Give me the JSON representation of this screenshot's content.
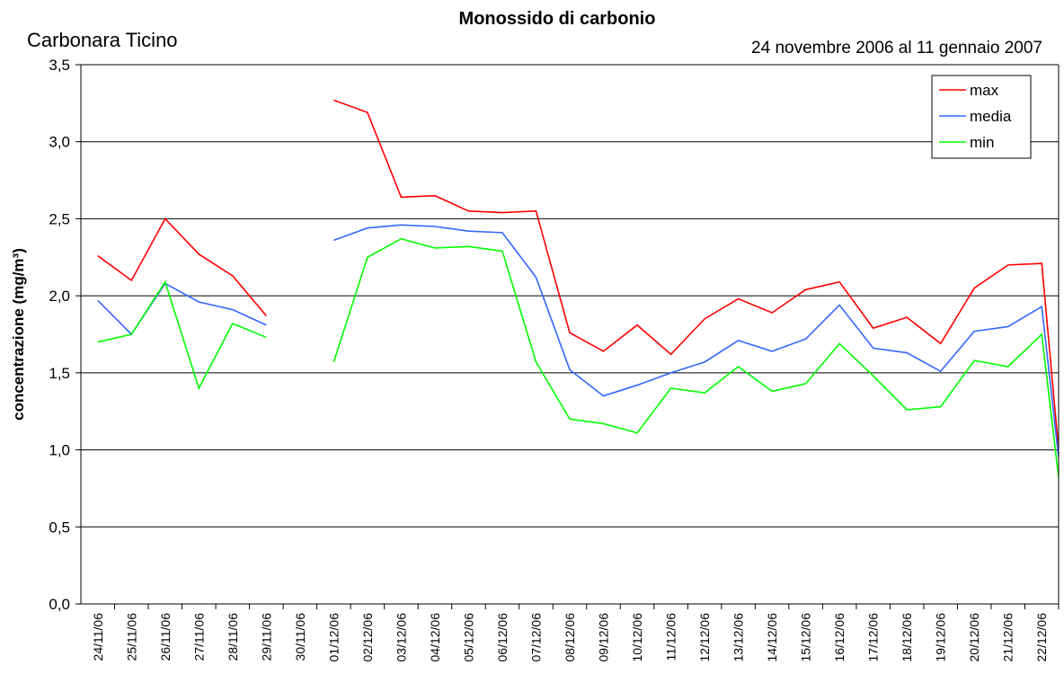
{
  "chart_data": {
    "type": "line",
    "title": "Monossido di carbonio",
    "subtitle": "24 novembre 2006 al 11 gennaio 2007",
    "location": "Carbonara Ticino",
    "y_label": "concentrazione (mg/m³)",
    "categories": [
      "24/11/06",
      "25/11/06",
      "26/11/06",
      "27/11/06",
      "28/11/06",
      "29/11/06",
      "30/11/06",
      "01/12/06",
      "02/12/06",
      "03/12/06",
      "04/12/06",
      "05/12/06",
      "06/12/06",
      "07/12/06",
      "08/12/06",
      "09/12/06",
      "10/12/06",
      "11/12/06",
      "12/12/06",
      "13/12/06",
      "14/12/06",
      "15/12/06",
      "16/12/06",
      "17/12/06",
      "18/12/06",
      "19/12/06",
      "20/12/06",
      "21/12/06",
      "22/12/06",
      null
    ],
    "series": [
      {
        "name": "max",
        "color": "#ff0000",
        "values": [
          2.26,
          2.1,
          2.5,
          2.27,
          2.13,
          1.87,
          null,
          3.27,
          3.19,
          2.64,
          2.65,
          2.55,
          2.54,
          2.55,
          1.76,
          1.64,
          1.81,
          1.62,
          1.85,
          1.98,
          1.89,
          2.04,
          2.09,
          1.79,
          1.86,
          1.69,
          2.05,
          2.2,
          2.21,
          1.0
        ]
      },
      {
        "name": "media",
        "color": "#3366ff",
        "values": [
          1.97,
          1.75,
          2.08,
          1.96,
          1.91,
          1.81,
          null,
          2.36,
          2.44,
          2.46,
          2.45,
          2.42,
          2.41,
          2.12,
          1.52,
          1.35,
          1.42,
          1.5,
          1.57,
          1.71,
          1.64,
          1.72,
          1.94,
          1.66,
          1.63,
          1.51,
          1.77,
          1.8,
          1.93,
          0.95
        ]
      },
      {
        "name": "min",
        "color": "#00ff00",
        "values": [
          1.7,
          1.75,
          2.09,
          1.4,
          1.82,
          1.73,
          null,
          1.57,
          2.25,
          2.37,
          2.31,
          2.32,
          2.29,
          1.57,
          1.2,
          1.17,
          1.11,
          1.4,
          1.37,
          1.54,
          1.38,
          1.43,
          1.69,
          1.48,
          1.26,
          1.28,
          1.58,
          1.54,
          1.75,
          0.82
        ]
      }
    ],
    "ylim": [
      0,
      3.5
    ],
    "yticks": [
      {
        "value": 0,
        "label": "0,0"
      },
      {
        "value": 0.5,
        "label": "0,5"
      },
      {
        "value": 1,
        "label": "1,0"
      },
      {
        "value": 1.5,
        "label": "1,5"
      },
      {
        "value": 2,
        "label": "2,0"
      },
      {
        "value": 2.5,
        "label": "2,5"
      },
      {
        "value": 3,
        "label": "3,0"
      },
      {
        "value": 3.5,
        "label": "3,5"
      }
    ],
    "grid": true,
    "legend": "top-right"
  }
}
